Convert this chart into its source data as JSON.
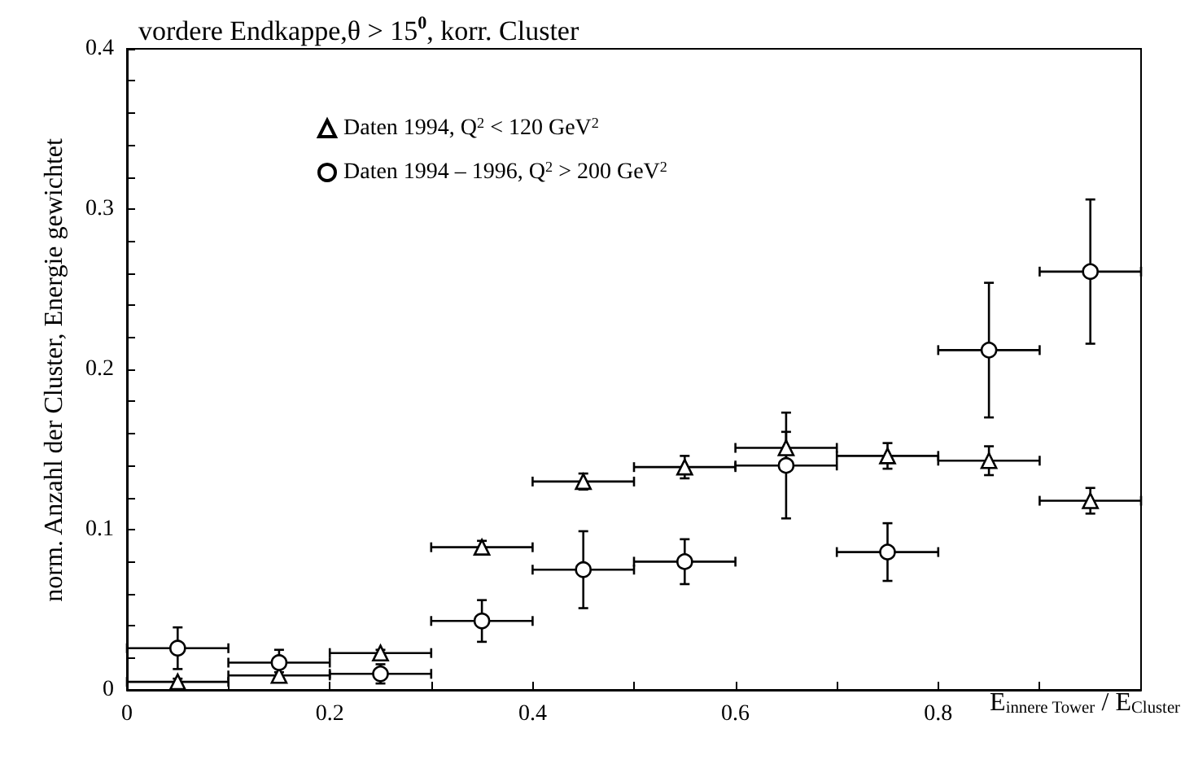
{
  "chart_data": {
    "type": "scatter",
    "title": "vordere Endkappe,θ > 15$^{0}$, korr. Cluster",
    "xlabel": "E$_{innere Tower}$ / E$_{Cluster}$",
    "ylabel": "norm. Anzahl der Cluster, Energie gewichtet",
    "x": [
      0.05,
      0.15,
      0.25,
      0.35,
      0.45,
      0.55,
      0.65,
      0.75,
      0.85,
      0.95
    ],
    "series": [
      {
        "name": "Daten 1994, Q$^{2}$ < 120 GeV$^{2}$",
        "color": "#000000",
        "marker": "triangle",
        "values": [
          0.005,
          0.009,
          0.023,
          0.089,
          0.13,
          0.139,
          0.151,
          0.146,
          0.143,
          0.118
        ],
        "errors": [
          0.002,
          0.002,
          0.002,
          0.004,
          0.005,
          0.007,
          0.01,
          0.008,
          0.009,
          0.008
        ],
        "xerrors": [
          0.05,
          0.05,
          0.05,
          0.05,
          0.05,
          0.05,
          0.05,
          0.05,
          0.05,
          0.05
        ]
      },
      {
        "name": "Daten 1994 – 1996, Q$^{2}$ > 200 GeV$^{2}$",
        "color": "#000000",
        "marker": "circle",
        "values": [
          0.026,
          0.017,
          0.01,
          0.043,
          0.075,
          0.08,
          0.14,
          0.086,
          0.212,
          0.261
        ],
        "errors": [
          0.013,
          0.008,
          0.006,
          0.013,
          0.024,
          0.014,
          0.033,
          0.018,
          0.042,
          0.045
        ],
        "xerrors": [
          0.05,
          0.05,
          0.05,
          0.05,
          0.05,
          0.05,
          0.05,
          0.05,
          0.05,
          0.05
        ]
      }
    ],
    "xlim": [
      0,
      1
    ],
    "xticks": [
      0,
      {
        "value": 0.1,
        "label": null
      },
      0.2,
      {
        "value": 0.3,
        "label": null
      },
      0.4,
      {
        "value": 0.5,
        "label": null
      },
      0.6,
      {
        "value": 0.7,
        "label": null
      },
      0.8,
      {
        "value": 0.9,
        "label": null
      }
    ],
    "ylim": [
      0,
      0.4
    ],
    "yticks": [
      0,
      {
        "value": 0.02,
        "label": null
      },
      {
        "value": 0.04,
        "label": null
      },
      {
        "value": 0.06,
        "label": null
      },
      {
        "value": 0.08,
        "label": null
      },
      0.1,
      {
        "value": 0.12,
        "label": null
      },
      {
        "value": 0.14,
        "label": null
      },
      {
        "value": 0.16,
        "label": null
      },
      {
        "value": 0.18,
        "label": null
      },
      0.2,
      {
        "value": 0.22,
        "label": null
      },
      {
        "value": 0.24,
        "label": null
      },
      {
        "value": 0.26,
        "label": null
      },
      {
        "value": 0.28,
        "label": null
      },
      0.3,
      {
        "value": 0.32,
        "label": null
      },
      {
        "value": 0.34,
        "label": null
      },
      {
        "value": 0.36,
        "label": null
      },
      {
        "value": 0.38,
        "label": null
      },
      0.4
    ],
    "legend": "top left",
    "grid": false
  }
}
